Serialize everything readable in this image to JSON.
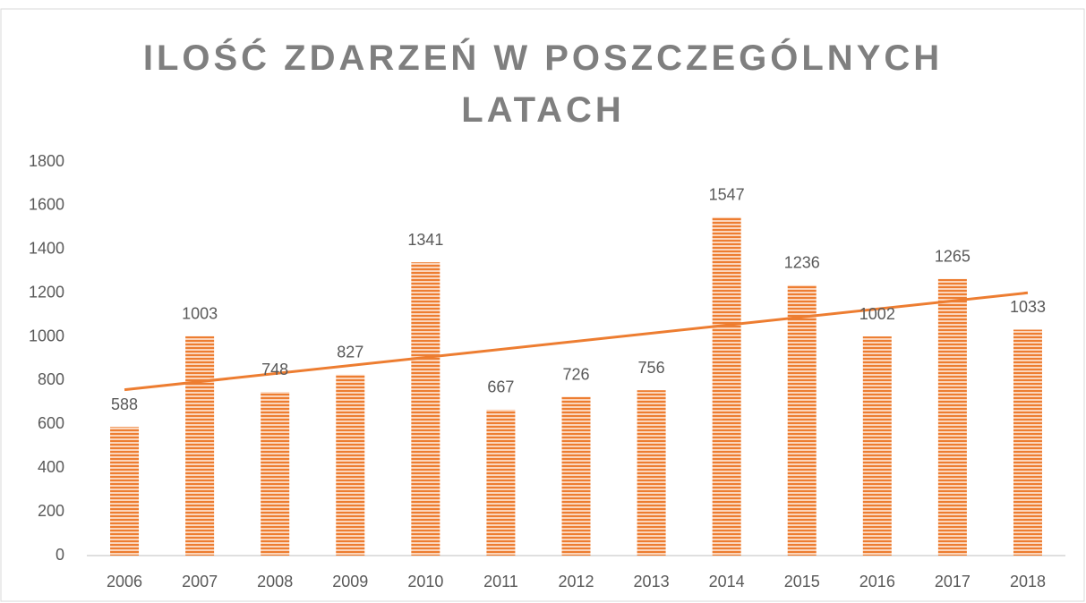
{
  "chart_data": {
    "type": "bar",
    "title": "ILOŚĆ ZDARZEŃ W POSZCZEGÓLNYCH LATACH",
    "categories": [
      "2006",
      "2007",
      "2008",
      "2009",
      "2010",
      "2011",
      "2012",
      "2013",
      "2014",
      "2015",
      "2016",
      "2017",
      "2018"
    ],
    "values": [
      588,
      1003,
      748,
      827,
      1341,
      667,
      726,
      756,
      1547,
      1236,
      1002,
      1265,
      1033
    ],
    "color": "#ed7d31",
    "trendline": true,
    "ylim": [
      0,
      1800
    ],
    "yticks": [
      0,
      200,
      400,
      600,
      800,
      1000,
      1200,
      1400,
      1600,
      1800
    ],
    "grid": false
  }
}
